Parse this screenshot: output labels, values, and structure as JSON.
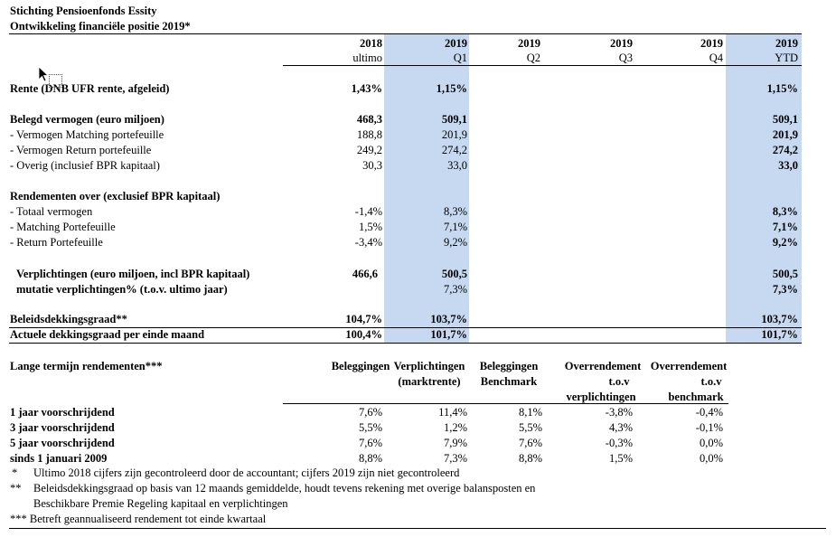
{
  "title": "Stichting Pensioenfonds Essity",
  "subtitle": "Ontwikkeling financiële positie 2019*",
  "columns": [
    {
      "year": "2018",
      "period": "ultimo"
    },
    {
      "year": "2019",
      "period": "Q1"
    },
    {
      "year": "2019",
      "period": "Q2"
    },
    {
      "year": "2019",
      "period": "Q3"
    },
    {
      "year": "2019",
      "period": "Q4"
    },
    {
      "year": "2019",
      "period": "YTD"
    }
  ],
  "rows": {
    "rente": {
      "label": "Rente (DNB UFR rente, afgeleid)",
      "v2018": "1,43%",
      "q1": "1,15%",
      "ytd": "1,15%"
    },
    "belegd": {
      "label": "Belegd vermogen (euro miljoen)",
      "v2018": "468,3",
      "q1": "509,1",
      "ytd": "509,1"
    },
    "matching": {
      "label": " - Vermogen Matching portefeuille",
      "v2018": "188,8",
      "q1": "201,9",
      "ytd": "201,9"
    },
    "return": {
      "label": " - Vermogen Return portefeuille",
      "v2018": "249,2",
      "q1": "274,2",
      "ytd": "274,2"
    },
    "overig": {
      "label": " - Overig (inclusief BPR kapitaal)",
      "v2018": "30,3",
      "q1": "33,0",
      "ytd": "33,0"
    },
    "rend_header": {
      "label": "Rendementen over (exclusief BPR kapitaal)"
    },
    "totaal": {
      "label": " - Totaal vermogen",
      "v2018": "-1,4%",
      "q1": "8,3%",
      "ytd": "8,3%"
    },
    "matching_pf": {
      "label": " - Matching Portefeuille",
      "v2018": "1,5%",
      "q1": "7,1%",
      "ytd": "7,1%"
    },
    "return_pf": {
      "label": " - Return Portefeuille",
      "v2018": "-3,4%",
      "q1": "9,2%",
      "ytd": "9,2%"
    },
    "verpl": {
      "label": "Verplichtingen (euro miljoen, incl BPR kapitaal)",
      "v2018": "466,6",
      "q1": "500,5",
      "ytd": "500,5"
    },
    "mutatie": {
      "label": "mutatie verplichtingen% (t.o.v. ultimo jaar)",
      "q1": "7,3%",
      "ytd": "7,3%"
    },
    "beleids": {
      "label": "Beleidsdekkingsgraad**",
      "v2018": "104,7%",
      "q1": "103,7%",
      "ytd": "103,7%"
    },
    "actuele": {
      "label": "Actuele dekkingsgraad per einde maand",
      "v2018": "100,4%",
      "q1": "101,7%",
      "ytd": "101,7%"
    }
  },
  "longterm": {
    "header": "Lange termijn rendementen***",
    "col_beleggingen": "Beleggingen",
    "col_verpl_1": "Verplichtingen",
    "col_verpl_2": "(marktrente)",
    "col_bench_1": "Beleggingen",
    "col_bench_2": "Benchmark",
    "col_over1_1": "Overrendement",
    "col_over1_2": "t.o.v",
    "col_over1_3": "verplichtingen",
    "col_over2_1": "Overrendement",
    "col_over2_2": "t.o.v",
    "col_over2_3": "benchmark",
    "rows": [
      {
        "label": "1 jaar voorschrijdend",
        "beleggingen": "7,6%",
        "verpl": "11,4%",
        "bench": "8,1%",
        "over_verpl": "-3,8%",
        "over_bench": "-0,4%"
      },
      {
        "label": "3 jaar voorschrijdend",
        "beleggingen": "5,5%",
        "verpl": "1,2%",
        "bench": "5,5%",
        "over_verpl": "4,3%",
        "over_bench": "-0,1%"
      },
      {
        "label": "5 jaar voorschrijdend",
        "beleggingen": "7,6%",
        "verpl": "7,9%",
        "bench": "7,6%",
        "over_verpl": "-0,3%",
        "over_bench": "0,0%"
      },
      {
        "label": "sinds 1 januari 2009",
        "beleggingen": "8,8%",
        "verpl": "7,3%",
        "bench": "8,8%",
        "over_verpl": "1,5%",
        "over_bench": "0,0%"
      }
    ]
  },
  "footnotes": {
    "f1_mark": "*",
    "f1_text": "Ultimo 2018 cijfers zijn gecontroleerd door de accountant; cijfers 2019 zijn niet gecontroleerd",
    "f2_mark": "**",
    "f2_text_1": "Beleidsdekkingsgraad op basis van 12 maands gemiddelde, houdt tevens rekening met overige balansposten en",
    "f2_text_2": "Beschikbare Premie Regeling kapitaal en verplichtingen",
    "f3_text": "*** Betreft geannualiseerd rendement tot einde kwartaal"
  },
  "colors": {
    "highlight_band": "#c6d9f1"
  }
}
